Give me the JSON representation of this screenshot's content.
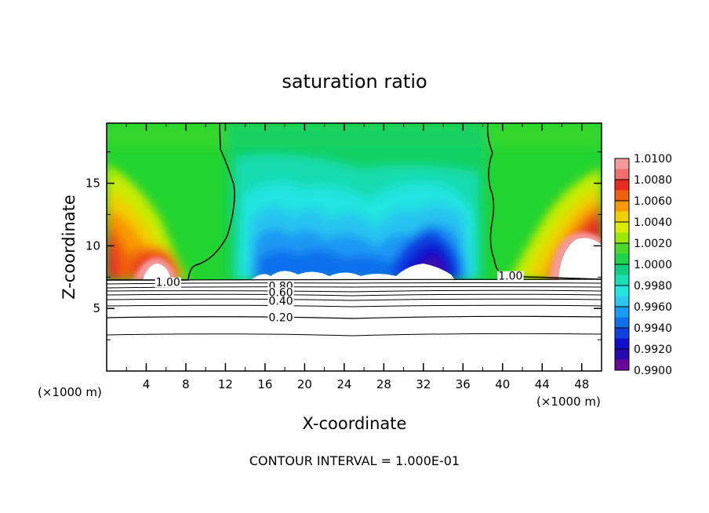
{
  "chart_data": {
    "type": "heatmap",
    "title": "saturation ratio",
    "xlabel": "X-coordinate",
    "ylabel": "Z-coordinate",
    "x_unit_left": "(×1000 m)",
    "x_unit_right": "(×1000 m)",
    "xlim": [
      0,
      50
    ],
    "ylim": [
      0,
      19.8
    ],
    "x_ticks": [
      4,
      8,
      12,
      16,
      20,
      24,
      28,
      32,
      36,
      40,
      44,
      48
    ],
    "y_ticks": [
      5,
      10,
      15
    ],
    "grid": false,
    "legend_position": "right",
    "colorbar": {
      "labels": [
        "1.0100",
        "1.0080",
        "1.0060",
        "1.0040",
        "1.0020",
        "1.0000",
        "0.9980",
        "0.9960",
        "0.9940",
        "0.9920",
        "0.9900"
      ],
      "colors": [
        "#f49a9a",
        "#f06e6e",
        "#e82a20",
        "#f06010",
        "#f89a00",
        "#f0d000",
        "#d8ec00",
        "#9ce800",
        "#4ad82a",
        "#1ed44a",
        "#10d080",
        "#18e0b4",
        "#20e8e0",
        "#28c8f0",
        "#189cf4",
        "#1070ec",
        "#1040e0",
        "#1010cc",
        "#2808b0",
        "#6a0898"
      ]
    },
    "contour_labels": [
      {
        "text": "1.00",
        "x": 6.2,
        "z": 7.1
      },
      {
        "text": "1.00",
        "x": 40.8,
        "z": 7.6
      },
      {
        "text": "0.80",
        "x": 17.6,
        "z": 6.8
      },
      {
        "text": "0.60",
        "x": 17.6,
        "z": 6.3
      },
      {
        "text": "0.40",
        "x": 17.6,
        "z": 5.6
      },
      {
        "text": "0.20",
        "x": 17.6,
        "z": 4.3
      }
    ],
    "footer": "CONTOUR INTERVAL = 1.000E-01"
  }
}
